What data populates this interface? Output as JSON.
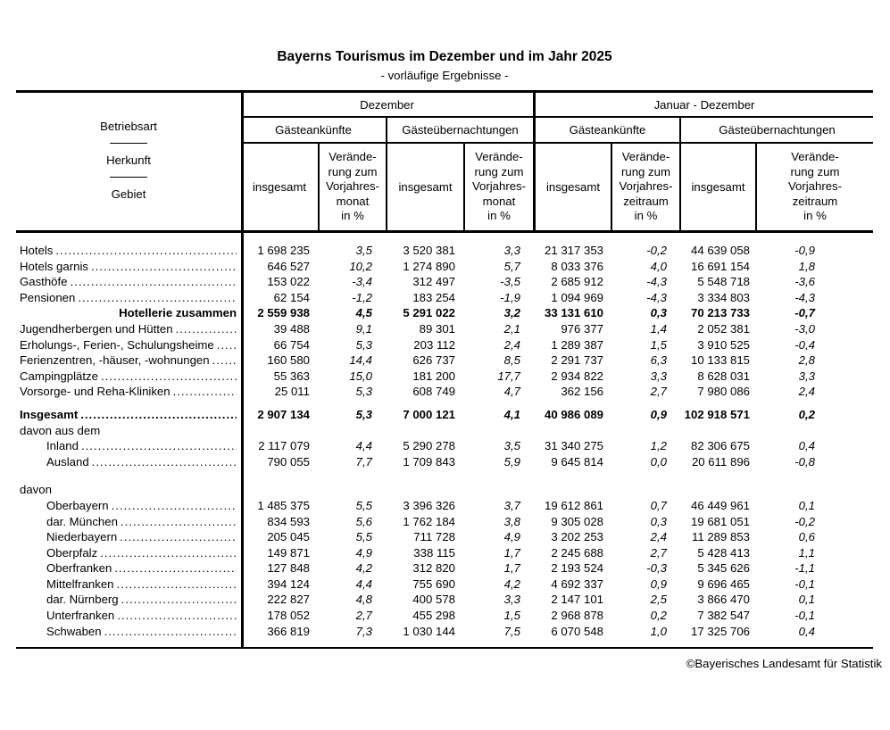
{
  "title": "Bayerns Tourismus im Dezember und im Jahr 2025",
  "subtitle": "- vorläufige Ergebnisse -",
  "footer": "©Bayerisches Landesamt für Statistik",
  "table": {
    "stub": [
      "Betriebsart",
      "Herkunft",
      "Gebiet"
    ],
    "groups": [
      {
        "label": "Dezember",
        "arrivals": "Gästeankünfte",
        "nights": "Gästeübernachtungen",
        "insgesamt": "insgesamt",
        "change": "Verände-\nrung zum\nVorjahres-\nmonat\nin %"
      },
      {
        "label": "Januar - Dezember",
        "arrivals": "Gästeankünfte",
        "nights": "Gästeübernachtungen",
        "insgesamt": "insgesamt",
        "change": "Verände-\nrung zum\nVorjahres-\nzeitraum\nin %"
      }
    ],
    "rows": [
      {
        "label": "Hotels",
        "style": "item",
        "leaders": true,
        "gap": 0,
        "values": [
          "1 698 235",
          "3,5",
          "3 520 381",
          "3,3",
          "21 317 353",
          "-0,2",
          "44 639 058",
          "-0,9"
        ]
      },
      {
        "label": "Hotels garnis",
        "style": "item",
        "leaders": true,
        "gap": 0,
        "values": [
          "646 527",
          "10,2",
          "1 274 890",
          "5,7",
          "8 033 376",
          "4,0",
          "16 691 154",
          "1,8"
        ]
      },
      {
        "label": "Gasthöfe",
        "style": "item",
        "leaders": true,
        "gap": 0,
        "values": [
          "153 022",
          "-3,4",
          "312 497",
          "-3,5",
          "2 685 912",
          "-4,3",
          "5 548 718",
          "-3,6"
        ]
      },
      {
        "label": "Pensionen",
        "style": "item",
        "leaders": true,
        "gap": 0,
        "values": [
          "62 154",
          "-1,2",
          "183 254",
          "-1,9",
          "1 094 969",
          "-4,3",
          "3 334 803",
          "-4,3"
        ]
      },
      {
        "label": "Hotellerie zusammen",
        "style": "total",
        "leaders": false,
        "gap": 0,
        "values": [
          "2 559 938",
          "4,5",
          "5 291 022",
          "3,2",
          "33 131 610",
          "0,3",
          "70 213 733",
          "-0,7"
        ]
      },
      {
        "label": "Jugendherbergen und Hütten",
        "style": "item",
        "leaders": true,
        "gap": 0,
        "values": [
          "39 488",
          "9,1",
          "89 301",
          "2,1",
          "976 377",
          "1,4",
          "2 052 381",
          "-3,0"
        ]
      },
      {
        "label": "Erholungs-, Ferien-, Schulungsheime",
        "style": "item",
        "leaders": true,
        "gap": 0,
        "values": [
          "66 754",
          "5,3",
          "203 112",
          "2,4",
          "1 289 387",
          "1,5",
          "3 910 525",
          "-0,4"
        ]
      },
      {
        "label": "Ferienzentren, -häuser, -wohnungen",
        "style": "item",
        "leaders": true,
        "gap": 0,
        "values": [
          "160 580",
          "14,4",
          "626 737",
          "8,5",
          "2 291 737",
          "6,3",
          "10 133 815",
          "2,8"
        ]
      },
      {
        "label": "Campingplätze",
        "style": "item",
        "leaders": true,
        "gap": 0,
        "values": [
          "55 363",
          "15,0",
          "181 200",
          "17,7",
          "2 934 822",
          "3,3",
          "8 628 031",
          "3,3"
        ]
      },
      {
        "label": "Vorsorge- und Reha-Kliniken",
        "style": "item",
        "leaders": true,
        "gap": 0,
        "values": [
          "25 011",
          "5,3",
          "608 749",
          "4,7",
          "362 156",
          "2,7",
          "7 980 086",
          "2,4"
        ]
      },
      {
        "label": "Insgesamt",
        "style": "grand",
        "leaders": true,
        "gap": 8,
        "values": [
          "2 907 134",
          "5,3",
          "7 000 121",
          "4,1",
          "40 986 089",
          "0,9",
          "102 918 571",
          "0,2"
        ]
      },
      {
        "label": "davon aus dem",
        "style": "section",
        "leaders": false,
        "gap": 0,
        "values": []
      },
      {
        "label": "Inland",
        "style": "sub",
        "leaders": true,
        "gap": 0,
        "values": [
          "2 117 079",
          "4,4",
          "5 290 278",
          "3,5",
          "31 340 275",
          "1,2",
          "82 306 675",
          "0,4"
        ]
      },
      {
        "label": "Ausland",
        "style": "sub",
        "leaders": true,
        "gap": 0,
        "values": [
          "790 055",
          "7,7",
          "1 709 843",
          "5,9",
          "9 645 814",
          "0,0",
          "20 611 896",
          "-0,8"
        ]
      },
      {
        "label": "davon",
        "style": "section",
        "leaders": false,
        "gap": 14,
        "values": []
      },
      {
        "label": "Oberbayern",
        "style": "sub",
        "leaders": true,
        "gap": 0,
        "values": [
          "1 485 375",
          "5,5",
          "3 396 326",
          "3,7",
          "19 612 861",
          "0,7",
          "46 449 961",
          "0,1"
        ]
      },
      {
        "label": "dar. München",
        "style": "sub",
        "leaders": true,
        "gap": 0,
        "values": [
          "834 593",
          "5,6",
          "1 762 184",
          "3,8",
          "9 305 028",
          "0,3",
          "19 681 051",
          "-0,2"
        ]
      },
      {
        "label": "Niederbayern",
        "style": "sub",
        "leaders": true,
        "gap": 0,
        "values": [
          "205 045",
          "5,5",
          "711 728",
          "4,9",
          "3 202 253",
          "2,4",
          "11 289 853",
          "0,6"
        ]
      },
      {
        "label": "Oberpfalz",
        "style": "sub",
        "leaders": true,
        "gap": 0,
        "values": [
          "149 871",
          "4,9",
          "338 115",
          "1,7",
          "2 245 688",
          "2,7",
          "5 428 413",
          "1,1"
        ]
      },
      {
        "label": "Oberfranken",
        "style": "sub",
        "leaders": true,
        "gap": 0,
        "values": [
          "127 848",
          "4,2",
          "312 820",
          "1,7",
          "2 193 524",
          "-0,3",
          "5 345 626",
          "-1,1"
        ]
      },
      {
        "label": "Mittelfranken",
        "style": "sub",
        "leaders": true,
        "gap": 0,
        "values": [
          "394 124",
          "4,4",
          "755 690",
          "4,2",
          "4 692 337",
          "0,9",
          "9 696 465",
          "-0,1"
        ]
      },
      {
        "label": "dar. Nürnberg",
        "style": "sub",
        "leaders": true,
        "gap": 0,
        "values": [
          "222 827",
          "4,8",
          "400 578",
          "3,3",
          "2 147 101",
          "2,5",
          "3 866 470",
          "0,1"
        ]
      },
      {
        "label": "Unterfranken",
        "style": "sub",
        "leaders": true,
        "gap": 0,
        "values": [
          "178 052",
          "2,7",
          "455 298",
          "1,5",
          "2 968 878",
          "0,2",
          "7 382 547",
          "-0,1"
        ]
      },
      {
        "label": "Schwaben",
        "style": "sub",
        "leaders": true,
        "gap": 0,
        "values": [
          "366 819",
          "7,3",
          "1 030 144",
          "7,5",
          "6 070 548",
          "1,0",
          "17 325 706",
          "0,4"
        ]
      }
    ]
  }
}
